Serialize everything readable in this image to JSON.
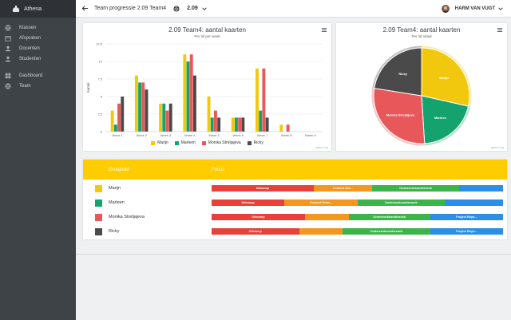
{
  "app": {
    "name": "Athena"
  },
  "sidebar": {
    "items": [
      {
        "label": "Klassen",
        "icon": "globe-icon"
      },
      {
        "label": "Afspraken",
        "icon": "calendar-icon"
      },
      {
        "label": "Docenten",
        "icon": "user-icon"
      },
      {
        "label": "Studenten",
        "icon": "user-icon"
      },
      {
        "label": "Dashboard",
        "icon": "dashboard-icon"
      },
      {
        "label": "Team",
        "icon": "globe-icon"
      }
    ]
  },
  "topbar": {
    "title": "Team progressie 2.09 Team4",
    "version": "2.09",
    "user": "HARM VAN VUGT"
  },
  "colors": {
    "Marijn": "#f2c80f",
    "Marleen": "#14a36e",
    "Monika Streljajeva": "#e8575a",
    "Ricky": "#4a4a4a",
    "ubicomp": "#e8413a",
    "content": "#f5961e",
    "onderzoek": "#3bb44a",
    "project": "#2b8fe8"
  },
  "bar_chart": {
    "title": "2.09 Team4: aantal kaarten",
    "subtitle": "Per lid per week",
    "ylabel": "Aantal",
    "credits": "[2020 © HJ]",
    "chart_data": {
      "type": "bar",
      "categories": [
        "Week 1",
        "Week 2",
        "Week 3",
        "Week 4",
        "Week 5",
        "Week 6",
        "Week 7",
        "Week 8",
        "Week 9"
      ],
      "yticks": [
        "0",
        "2.5",
        "5",
        "7.5",
        "10",
        "12.5"
      ],
      "ylim": [
        0,
        12.5
      ],
      "series": [
        {
          "name": "Marijn",
          "values": [
            3,
            8,
            4,
            11,
            5,
            2,
            9,
            1,
            0
          ]
        },
        {
          "name": "Marleen",
          "values": [
            1,
            7,
            4,
            10,
            2,
            2,
            3,
            0,
            0
          ]
        },
        {
          "name": "Monika Streljajeva",
          "values": [
            4,
            7,
            3,
            11,
            3,
            2,
            9,
            1,
            0
          ]
        },
        {
          "name": "Ricky",
          "values": [
            5,
            6,
            4,
            8,
            2,
            2,
            2,
            0,
            0
          ]
        }
      ]
    }
  },
  "pie_chart": {
    "title": "2.09 Team4: aantal kaarten",
    "subtitle": "Per lid totaal",
    "credits": "[2020 © HJ]",
    "chart_data": {
      "type": "pie",
      "slices": [
        {
          "name": "Marijn",
          "value": 28.5
        },
        {
          "name": "Marleen",
          "value": 20.5
        },
        {
          "name": "Monika Streljajeva",
          "value": 28.5
        },
        {
          "name": "Ricky",
          "value": 22.5
        }
      ]
    }
  },
  "table": {
    "headers": [
      "Groepslid",
      "Focus"
    ],
    "rows": [
      {
        "name": "Marijn",
        "segments": [
          {
            "label": "Ubicomp",
            "value": 35,
            "cat": "ubicomp"
          },
          {
            "label": "Content Ont...",
            "value": 20,
            "cat": "content"
          },
          {
            "label": "Onderzoeksonderzoek",
            "value": 30,
            "cat": "onderzoek"
          },
          {
            "label": "",
            "value": 15,
            "cat": "project"
          }
        ]
      },
      {
        "name": "Marleen",
        "segments": [
          {
            "label": "Ubicomp",
            "value": 25,
            "cat": "ubicomp"
          },
          {
            "label": "Content Ontw...",
            "value": 25,
            "cat": "content"
          },
          {
            "label": "Onderzoeksonderzoek",
            "value": 30,
            "cat": "onderzoek"
          },
          {
            "label": "",
            "value": 20,
            "cat": "project"
          }
        ]
      },
      {
        "name": "Monika Streljajeva",
        "segments": [
          {
            "label": "Ubicomp",
            "value": 32,
            "cat": "ubicomp"
          },
          {
            "label": "",
            "value": 15,
            "cat": "content"
          },
          {
            "label": "Onderzoeksonderzoek",
            "value": 28,
            "cat": "onderzoek"
          },
          {
            "label": "Project Beyo...",
            "value": 25,
            "cat": "project"
          }
        ]
      },
      {
        "name": "Ricky",
        "segments": [
          {
            "label": "Ubicomp",
            "value": 30,
            "cat": "ubicomp"
          },
          {
            "label": "",
            "value": 15,
            "cat": "content"
          },
          {
            "label": "Onderzoeksonderzoek",
            "value": 30,
            "cat": "onderzoek"
          },
          {
            "label": "Project Beyo...",
            "value": 25,
            "cat": "project"
          }
        ]
      }
    ]
  }
}
